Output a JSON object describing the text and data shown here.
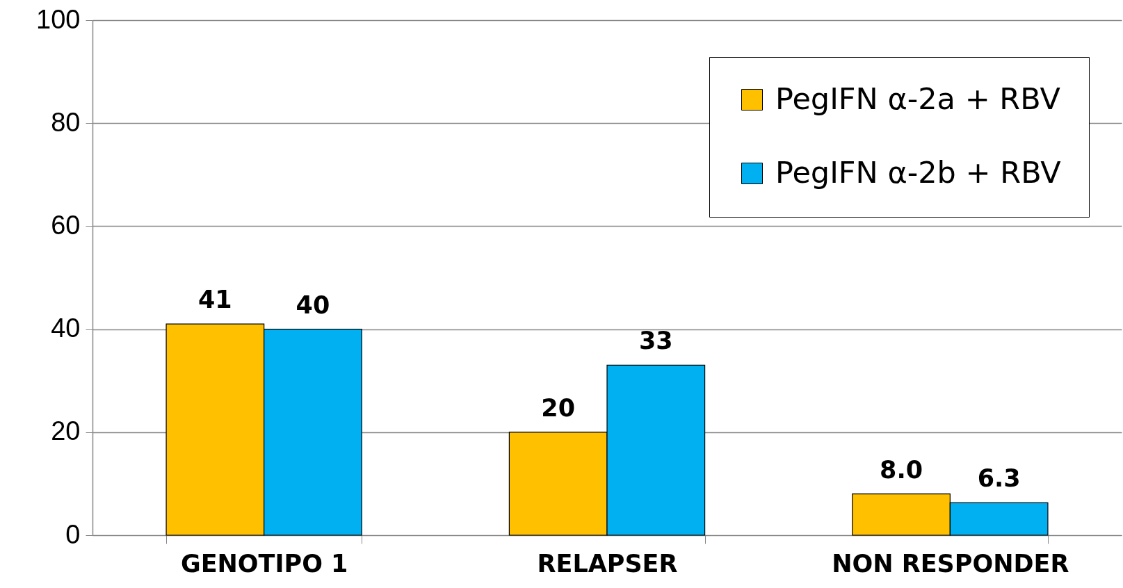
{
  "chart_data": {
    "type": "bar",
    "categories": [
      "GENOTIPO 1",
      "RELAPSER",
      "NON RESPONDER"
    ],
    "series": [
      {
        "name": "PegIFN α-2a + RBV",
        "color": "#ffc000",
        "values": [
          41,
          20,
          8.0
        ],
        "value_labels": [
          "41",
          "20",
          "8.0"
        ]
      },
      {
        "name": "PegIFN α-2b + RBV",
        "color": "#00b0f0",
        "values": [
          40,
          33,
          6.3
        ],
        "value_labels": [
          "40",
          "33",
          "6.3"
        ]
      }
    ],
    "ylim": [
      0,
      100
    ],
    "yticks": [
      0,
      20,
      40,
      60,
      80,
      100
    ],
    "grid": "y",
    "legend": "top right"
  }
}
